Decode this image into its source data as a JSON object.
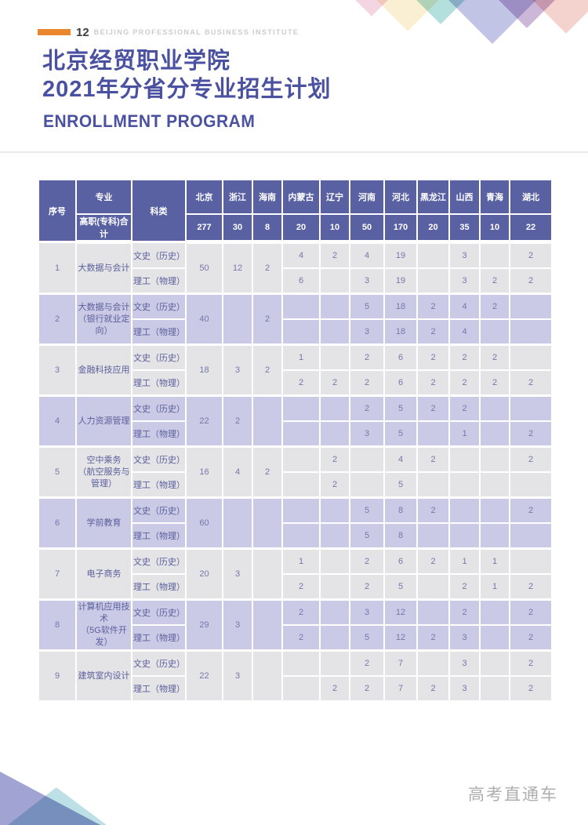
{
  "page": {
    "page_number": "12",
    "institute_en": "BEIJING PROFESSIONAL BUSINESS INSTITUTE",
    "title_line1": "北京经贸职业学院",
    "title_line2": "2021年分省分专业招生计划",
    "subtitle": "ENROLLMENT PROGRAM",
    "footer_brand": "高考直通车"
  },
  "colors": {
    "accent_orange": "#e8872d",
    "title_indigo": "#4a51a0",
    "header_purple": "#5a61a3",
    "row_gray": "#e4e3e6",
    "row_purple": "#cbcae6",
    "deco_pink": "#f3cfdd",
    "deco_cream": "#f9edcc",
    "deco_teal": "#a6dbd7",
    "deco_lavender": "#b7bae1",
    "deco_mauve": "#c5abd2",
    "deco_salmon": "#f2cac4",
    "footer_tri_purple": "#9193ca",
    "footer_tri_blue": "#abd8e0"
  },
  "table": {
    "header": {
      "col_seq": "序号",
      "col_major": "专业",
      "col_major_total": "高职(专科)合计",
      "col_category": "科类",
      "provinces": [
        "北京",
        "浙江",
        "海南",
        "内蒙古",
        "辽宁",
        "河南",
        "河北",
        "黑龙江",
        "山西",
        "青海",
        "湖北"
      ],
      "totals": [
        "277",
        "30",
        "8",
        "20",
        "10",
        "50",
        "170",
        "20",
        "35",
        "10",
        "22"
      ]
    },
    "category_labels": [
      "文史（历史）",
      "理工（物理）"
    ],
    "rows": [
      {
        "seq": "1",
        "major": [
          "大数据与会计"
        ],
        "merged": [
          "50",
          "12",
          "2"
        ],
        "wenshi": [
          "4",
          "2",
          "4",
          "19",
          "",
          "3",
          "",
          "2"
        ],
        "ligong": [
          "6",
          "",
          "3",
          "19",
          "",
          "3",
          "2",
          "2"
        ]
      },
      {
        "seq": "2",
        "major": [
          "大数据与会计",
          "（银行就业定向）"
        ],
        "merged": [
          "40",
          "",
          "2"
        ],
        "wenshi": [
          "",
          "",
          "5",
          "18",
          "2",
          "4",
          "2",
          ""
        ],
        "ligong": [
          "",
          "",
          "3",
          "18",
          "2",
          "4",
          "",
          ""
        ]
      },
      {
        "seq": "3",
        "major": [
          "金融科技应用"
        ],
        "merged": [
          "18",
          "3",
          "2"
        ],
        "wenshi": [
          "1",
          "",
          "2",
          "6",
          "2",
          "2",
          "2",
          ""
        ],
        "ligong": [
          "2",
          "2",
          "2",
          "6",
          "2",
          "2",
          "2",
          "2"
        ]
      },
      {
        "seq": "4",
        "major": [
          "人力资源管理"
        ],
        "merged": [
          "22",
          "2",
          ""
        ],
        "wenshi": [
          "",
          "",
          "2",
          "5",
          "2",
          "2",
          "",
          ""
        ],
        "ligong": [
          "",
          "",
          "3",
          "5",
          "",
          "1",
          "",
          "2"
        ]
      },
      {
        "seq": "5",
        "major": [
          "空中乘务",
          "（航空服务与管理）"
        ],
        "merged": [
          "16",
          "4",
          "2"
        ],
        "wenshi": [
          "",
          "2",
          "",
          "4",
          "2",
          "",
          "",
          "2"
        ],
        "ligong": [
          "",
          "2",
          "",
          "5",
          "",
          "",
          "",
          ""
        ]
      },
      {
        "seq": "6",
        "major": [
          "学前教育"
        ],
        "merged": [
          "60",
          "",
          ""
        ],
        "wenshi": [
          "",
          "",
          "5",
          "8",
          "2",
          "",
          "",
          "2"
        ],
        "ligong": [
          "",
          "",
          "5",
          "8",
          "",
          "",
          "",
          ""
        ]
      },
      {
        "seq": "7",
        "major": [
          "电子商务"
        ],
        "merged": [
          "20",
          "3",
          ""
        ],
        "wenshi": [
          "1",
          "",
          "2",
          "6",
          "2",
          "1",
          "1",
          ""
        ],
        "ligong": [
          "2",
          "",
          "2",
          "5",
          "",
          "2",
          "1",
          "2"
        ]
      },
      {
        "seq": "8",
        "major": [
          "计算机应用技术",
          "（5G软件开发）"
        ],
        "merged": [
          "29",
          "3",
          ""
        ],
        "wenshi": [
          "2",
          "",
          "3",
          "12",
          "",
          "2",
          "",
          "2"
        ],
        "ligong": [
          "2",
          "",
          "5",
          "12",
          "2",
          "3",
          "",
          "2"
        ]
      },
      {
        "seq": "9",
        "major": [
          "建筑室内设计"
        ],
        "merged": [
          "22",
          "3",
          ""
        ],
        "wenshi": [
          "",
          "",
          "2",
          "7",
          "",
          "3",
          "",
          "2"
        ],
        "ligong": [
          "",
          "2",
          "2",
          "7",
          "2",
          "3",
          "",
          "2"
        ]
      }
    ]
  }
}
